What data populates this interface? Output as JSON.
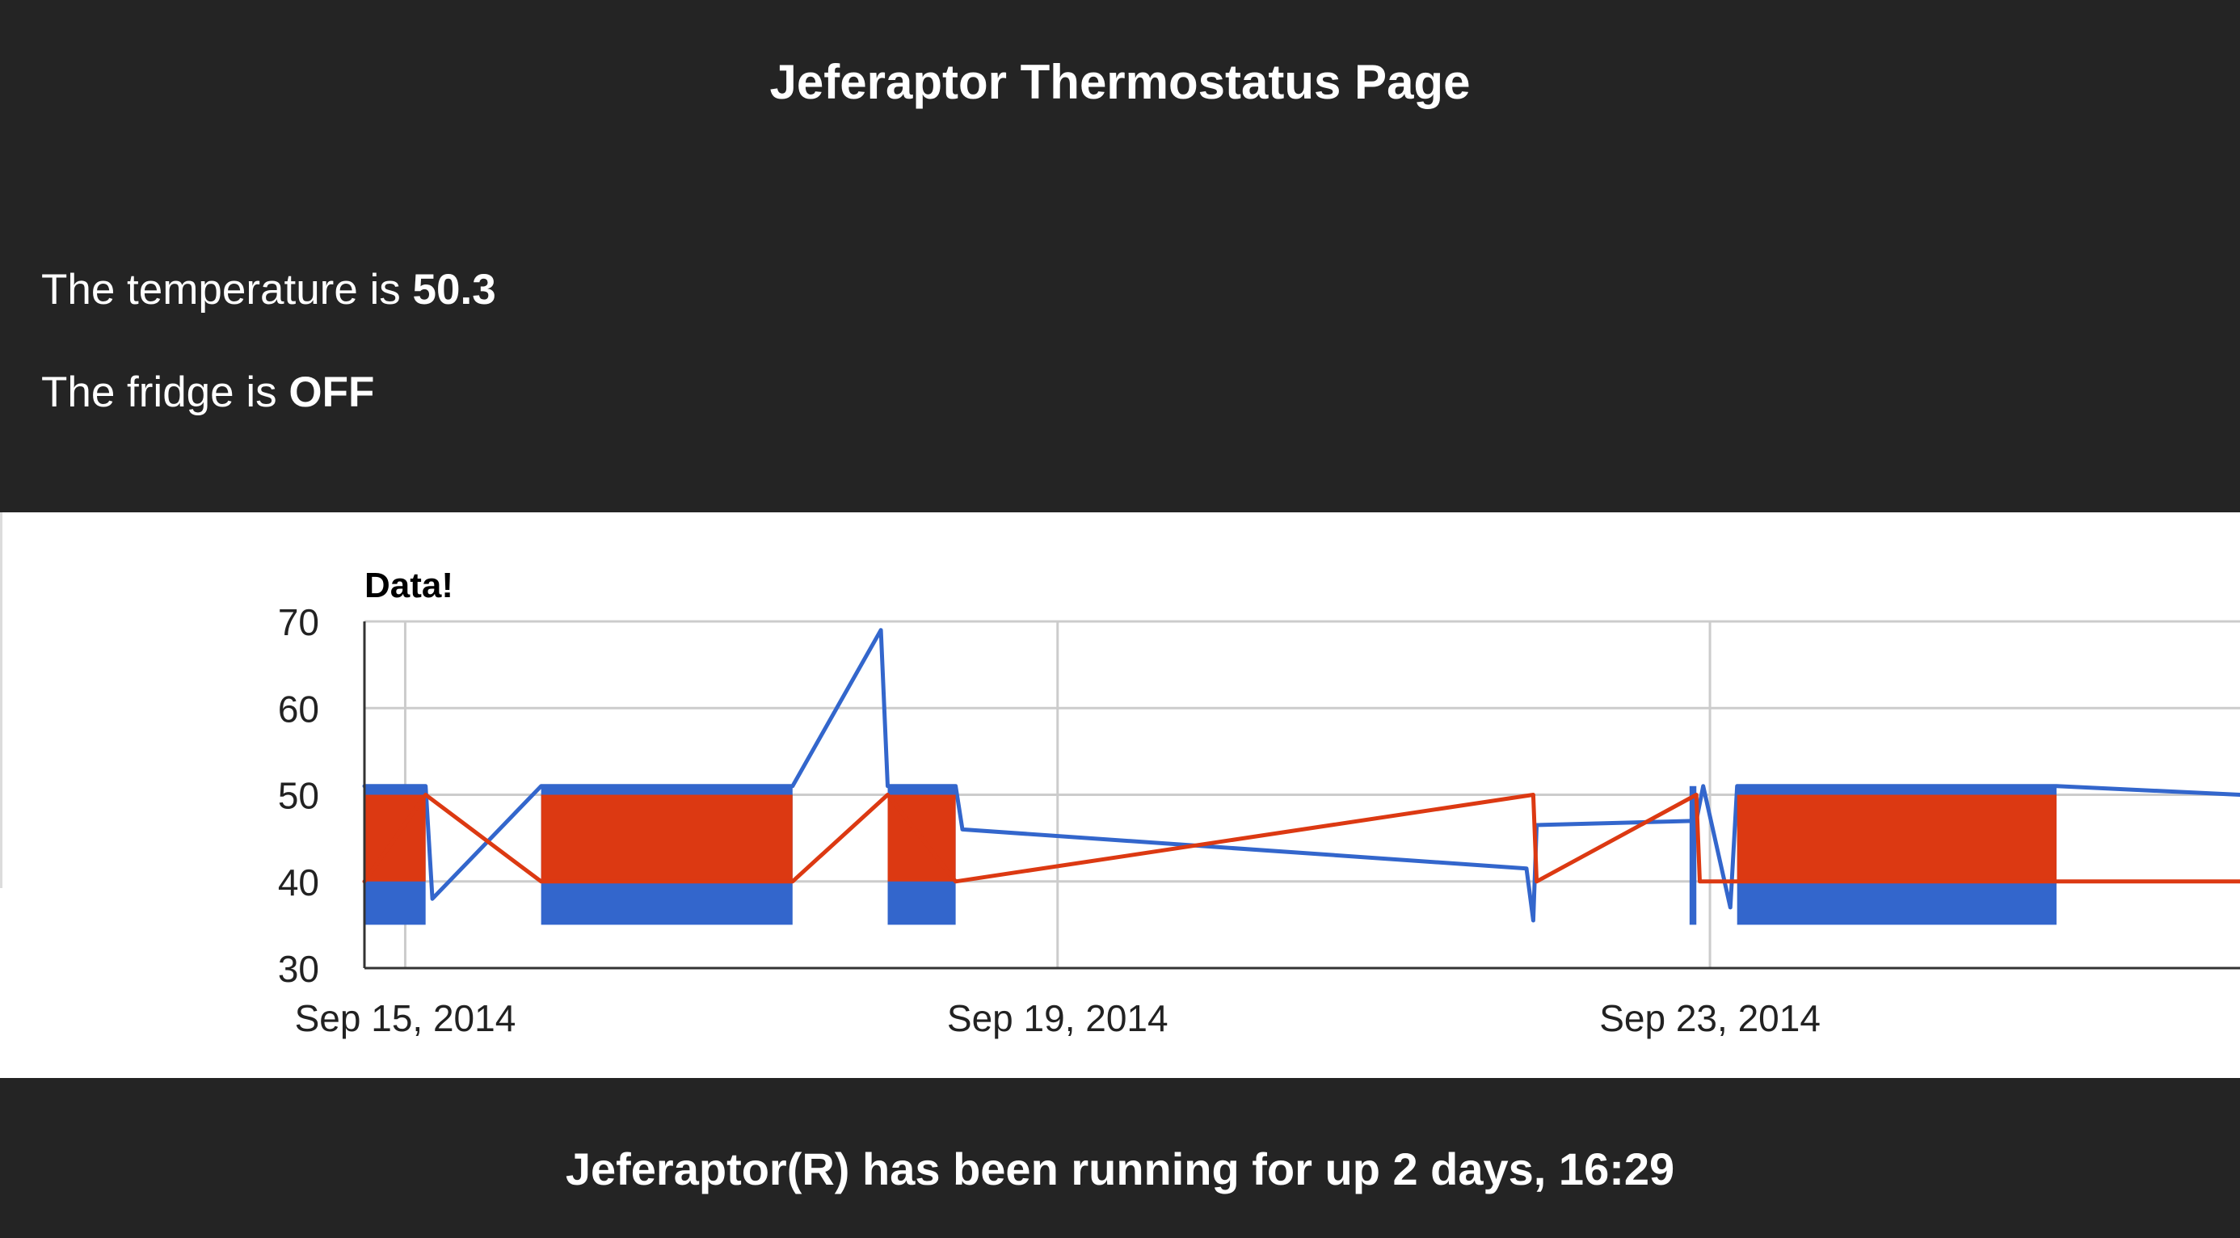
{
  "header": {
    "title": "Jeferaptor Thermostatus Page",
    "temperature_prefix": "The temperature is ",
    "temperature_value": "50.3",
    "fridge_prefix": "The fridge is ",
    "fridge_value": "OFF"
  },
  "footer": {
    "uptime_text": "Jeferaptor(R) has been running for up 2 days, 16:29"
  },
  "colors": {
    "background": "#242424",
    "temperature_series": "#3366cc",
    "fridge_series": "#dc3912",
    "gridline": "#cccccc",
    "axis_baseline": "#333333"
  },
  "chart_data": {
    "type": "line",
    "title": "Data!",
    "xlabel": "",
    "ylabel": "",
    "x_type": "date",
    "xlim": [
      "2014-09-14T18:00",
      "2014-09-26T06:00"
    ],
    "ylim": [
      30,
      70
    ],
    "y_ticks": [
      30,
      40,
      50,
      60,
      70
    ],
    "x_ticks": [
      {
        "date": "2014-09-15",
        "label": "Sep 15, 2014"
      },
      {
        "date": "2014-09-19",
        "label": "Sep 19, 2014"
      },
      {
        "date": "2014-09-23",
        "label": "Sep 23, 2014"
      }
    ],
    "grid": true,
    "legend": "none",
    "series": [
      {
        "color": "#3366cc",
        "points": [
          [
            "2014-09-14T18:00",
            51
          ],
          [
            "2014-09-15T03:00",
            51
          ],
          [
            "2014-09-15T04:00",
            38
          ],
          [
            "2014-09-15T20:00",
            51
          ],
          [
            "2014-09-17T09:00",
            51
          ],
          [
            "2014-09-17T22:00",
            69
          ],
          [
            "2014-09-17T23:00",
            51
          ],
          [
            "2014-09-18T09:00",
            51
          ],
          [
            "2014-09-18T10:00",
            46
          ],
          [
            "2014-09-21T21:00",
            41.5
          ],
          [
            "2014-09-21T22:00",
            35.5
          ],
          [
            "2014-09-21T22:30",
            46.5
          ],
          [
            "2014-09-22T22:00",
            47
          ],
          [
            "2014-09-22T23:00",
            51
          ],
          [
            "2014-09-23T03:00",
            37
          ],
          [
            "2014-09-23T04:00",
            51
          ],
          [
            "2014-09-25T03:00",
            51
          ],
          [
            "2014-09-26T06:00",
            50
          ]
        ],
        "oscillation_bands": [
          {
            "start": "2014-09-14T18:00",
            "end": "2014-09-15T03:00",
            "high": 51,
            "low": 35
          },
          {
            "start": "2014-09-15T20:00",
            "end": "2014-09-17T09:00",
            "high": 51,
            "low": 35
          },
          {
            "start": "2014-09-17T23:00",
            "end": "2014-09-18T09:00",
            "high": 51,
            "low": 35
          },
          {
            "start": "2014-09-22T21:00",
            "end": "2014-09-22T22:00",
            "high": 51,
            "low": 35
          },
          {
            "start": "2014-09-23T04:00",
            "end": "2014-09-25T03:00",
            "high": 51,
            "low": 35
          }
        ]
      },
      {
        "color": "#dc3912",
        "points": [
          [
            "2014-09-14T18:00",
            40
          ],
          [
            "2014-09-15T03:00",
            50
          ],
          [
            "2014-09-15T20:00",
            40
          ],
          [
            "2014-09-17T09:00",
            40
          ],
          [
            "2014-09-17T23:00",
            50
          ],
          [
            "2014-09-18T09:00",
            40
          ],
          [
            "2014-09-21T22:00",
            50
          ],
          [
            "2014-09-21T22:30",
            40
          ],
          [
            "2014-09-22T22:00",
            50
          ],
          [
            "2014-09-22T22:30",
            40
          ],
          [
            "2014-09-23T04:00",
            40
          ],
          [
            "2014-09-25T03:00",
            40
          ],
          [
            "2014-09-26T06:00",
            40
          ]
        ],
        "oscillation_bands": [
          {
            "start": "2014-09-14T18:00",
            "end": "2014-09-15T03:00",
            "high": 50,
            "low": 40
          },
          {
            "start": "2014-09-15T20:00",
            "end": "2014-09-17T09:00",
            "high": 50,
            "low": 40
          },
          {
            "start": "2014-09-17T23:00",
            "end": "2014-09-18T09:00",
            "high": 50,
            "low": 40
          },
          {
            "start": "2014-09-23T04:00",
            "end": "2014-09-25T03:00",
            "high": 50,
            "low": 40
          }
        ]
      }
    ]
  }
}
